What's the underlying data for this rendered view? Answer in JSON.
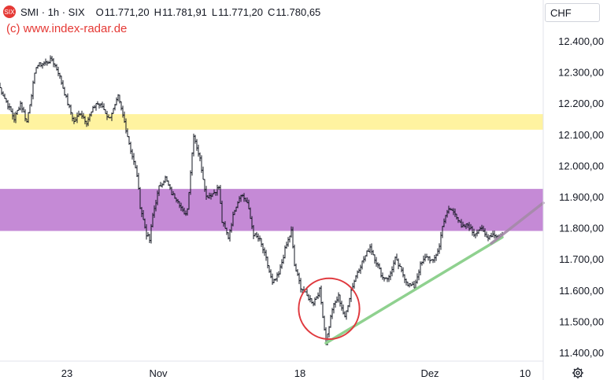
{
  "header": {
    "logo_text": "SIX",
    "symbol": "SMI · 1h · SIX",
    "open_label": "O",
    "open": "11.771,20",
    "high_label": "H",
    "high": "11.781,91",
    "low_label": "L",
    "low": "11.771,20",
    "close_label": "C",
    "close": "11.780,65"
  },
  "watermark": "(c) www.index-radar.de",
  "currency": "CHF",
  "icons": {
    "settings": "gear-icon"
  },
  "colors": {
    "up": "#131722",
    "down": "#131722",
    "yellow_zone": "#fff3a0",
    "purple_zone": "#c58ad6",
    "trendline": "#8fd18f",
    "projection": "#a48aa8",
    "circle": "#e0393e"
  },
  "chart_data": {
    "type": "candlestick",
    "title": "",
    "xlabel": "",
    "ylabel": "",
    "ylim": [
      11380,
      12500
    ],
    "x_ticks": [
      "23",
      "Nov",
      "18",
      "Dez",
      "10"
    ],
    "y_ticks": [
      "12.400,00",
      "12.300,00",
      "12.200,00",
      "12.100,00",
      "12.000,00",
      "11.900,00",
      "11.800,00",
      "11.700,00",
      "11.600,00",
      "11.500,00",
      "11.400,00"
    ],
    "y_tick_values": [
      12400,
      12300,
      12200,
      12100,
      12000,
      11900,
      11800,
      11700,
      11600,
      11500,
      11400
    ],
    "anchors": [
      [
        0,
        12260
      ],
      [
        10,
        12150
      ],
      [
        14,
        12200
      ],
      [
        18,
        12140
      ],
      [
        24,
        12320
      ],
      [
        30,
        12330
      ],
      [
        34,
        12340
      ],
      [
        38,
        12300
      ],
      [
        44,
        12200
      ],
      [
        48,
        12140
      ],
      [
        52,
        12170
      ],
      [
        56,
        12140
      ],
      [
        62,
        12200
      ],
      [
        66,
        12190
      ],
      [
        70,
        12150
      ],
      [
        74,
        12190
      ],
      [
        76,
        12220
      ],
      [
        80,
        12140
      ],
      [
        84,
        12050
      ],
      [
        88,
        11970
      ],
      [
        90,
        11870
      ],
      [
        94,
        11780
      ],
      [
        96,
        11760
      ],
      [
        98,
        11840
      ],
      [
        102,
        11930
      ],
      [
        106,
        11960
      ],
      [
        110,
        11910
      ],
      [
        114,
        11890
      ],
      [
        118,
        11840
      ],
      [
        120,
        11860
      ],
      [
        124,
        12100
      ],
      [
        128,
        12020
      ],
      [
        132,
        11900
      ],
      [
        136,
        11910
      ],
      [
        140,
        11930
      ],
      [
        142,
        11820
      ],
      [
        146,
        11770
      ],
      [
        150,
        11860
      ],
      [
        154,
        11910
      ],
      [
        158,
        11880
      ],
      [
        162,
        11780
      ],
      [
        166,
        11760
      ],
      [
        170,
        11700
      ],
      [
        174,
        11620
      ],
      [
        178,
        11650
      ],
      [
        182,
        11730
      ],
      [
        186,
        11790
      ],
      [
        188,
        11680
      ],
      [
        192,
        11610
      ],
      [
        196,
        11580
      ],
      [
        200,
        11560
      ],
      [
        204,
        11600
      ],
      [
        206,
        11520
      ],
      [
        208,
        11430
      ],
      [
        212,
        11540
      ],
      [
        216,
        11580
      ],
      [
        220,
        11510
      ],
      [
        224,
        11600
      ],
      [
        228,
        11660
      ],
      [
        232,
        11700
      ],
      [
        236,
        11740
      ],
      [
        240,
        11690
      ],
      [
        244,
        11640
      ],
      [
        248,
        11640
      ],
      [
        252,
        11700
      ],
      [
        256,
        11660
      ],
      [
        260,
        11620
      ],
      [
        264,
        11610
      ],
      [
        268,
        11680
      ],
      [
        272,
        11710
      ],
      [
        276,
        11690
      ],
      [
        280,
        11740
      ],
      [
        282,
        11810
      ],
      [
        286,
        11860
      ],
      [
        290,
        11850
      ],
      [
        294,
        11800
      ],
      [
        298,
        11810
      ],
      [
        302,
        11780
      ],
      [
        306,
        11800
      ],
      [
        310,
        11770
      ],
      [
        314,
        11780
      ],
      [
        318,
        11770
      ],
      [
        320,
        11781
      ]
    ],
    "zones": [
      {
        "low": 12115,
        "high": 12165,
        "color": "#fff3a0"
      },
      {
        "low": 11790,
        "high": 11925,
        "color": "#c58ad6"
      }
    ],
    "trendline": {
      "start": [
        208,
        11430
      ],
      "end": [
        320,
        11770
      ]
    },
    "projection": {
      "start": [
        313,
        11750
      ],
      "end": [
        346,
        11880
      ]
    },
    "circle": {
      "center": [
        208,
        11490
      ],
      "radius_price": 50
    }
  }
}
